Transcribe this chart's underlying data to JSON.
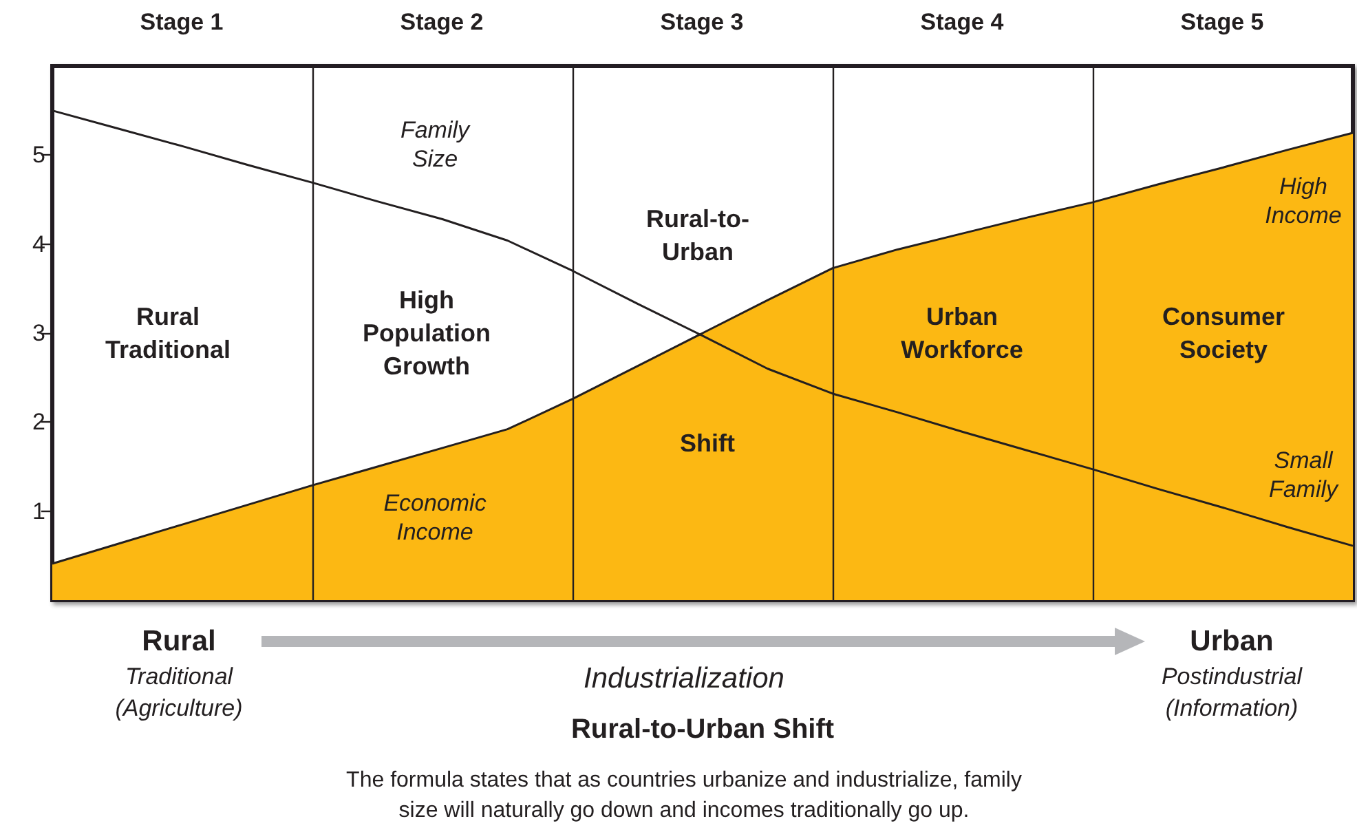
{
  "chart_data": {
    "type": "line",
    "xlabel": "Rural-to-Urban Shift",
    "categories": [
      null,
      null,
      null,
      null,
      null,
      null,
      null,
      null,
      null,
      null,
      null,
      null,
      null,
      null,
      null,
      null,
      null,
      null,
      null,
      null,
      null
    ],
    "ylim": [
      0,
      6
    ],
    "yticks": [
      1,
      2,
      3,
      4,
      5
    ],
    "tick_labels": "y",
    "grid": "x",
    "marker": "none",
    "series": [
      {
        "color": "#231f20",
        "values": [
          5.5,
          5.3,
          5.1,
          4.89,
          4.69,
          4.48,
          4.28,
          4.04,
          3.7,
          3.33,
          2.97,
          2.6,
          2.32,
          2.11,
          1.89,
          1.68,
          1.47,
          1.25,
          1.04,
          0.82,
          0.61
        ]
      },
      {
        "type": "area",
        "color": "#fcb813",
        "values": [
          0.41,
          0.63,
          0.85,
          1.07,
          1.29,
          1.5,
          1.71,
          1.92,
          2.26,
          2.63,
          3.0,
          3.37,
          3.73,
          3.94,
          4.12,
          4.3,
          4.47,
          4.67,
          4.86,
          5.06,
          5.25
        ]
      }
    ],
    "annotations": [
      "Stage 1",
      "Stage 2",
      "Stage 3",
      "Stage 4",
      "Stage 5",
      "Family Size",
      "Economic Income",
      "High Income",
      "Small Family",
      "Rural Traditional",
      "High Population Growth",
      "Rural-to-Urban",
      "Shift",
      "Urban Workforce",
      "Consumer Society",
      "Rural",
      "Traditional (Agriculture)",
      "Industrialization",
      "Urban",
      "Postindustrial (Information)",
      "The formula states that as countries urbanize and industrialize, family size will naturally go down and incomes traditionally go up."
    ]
  }
}
